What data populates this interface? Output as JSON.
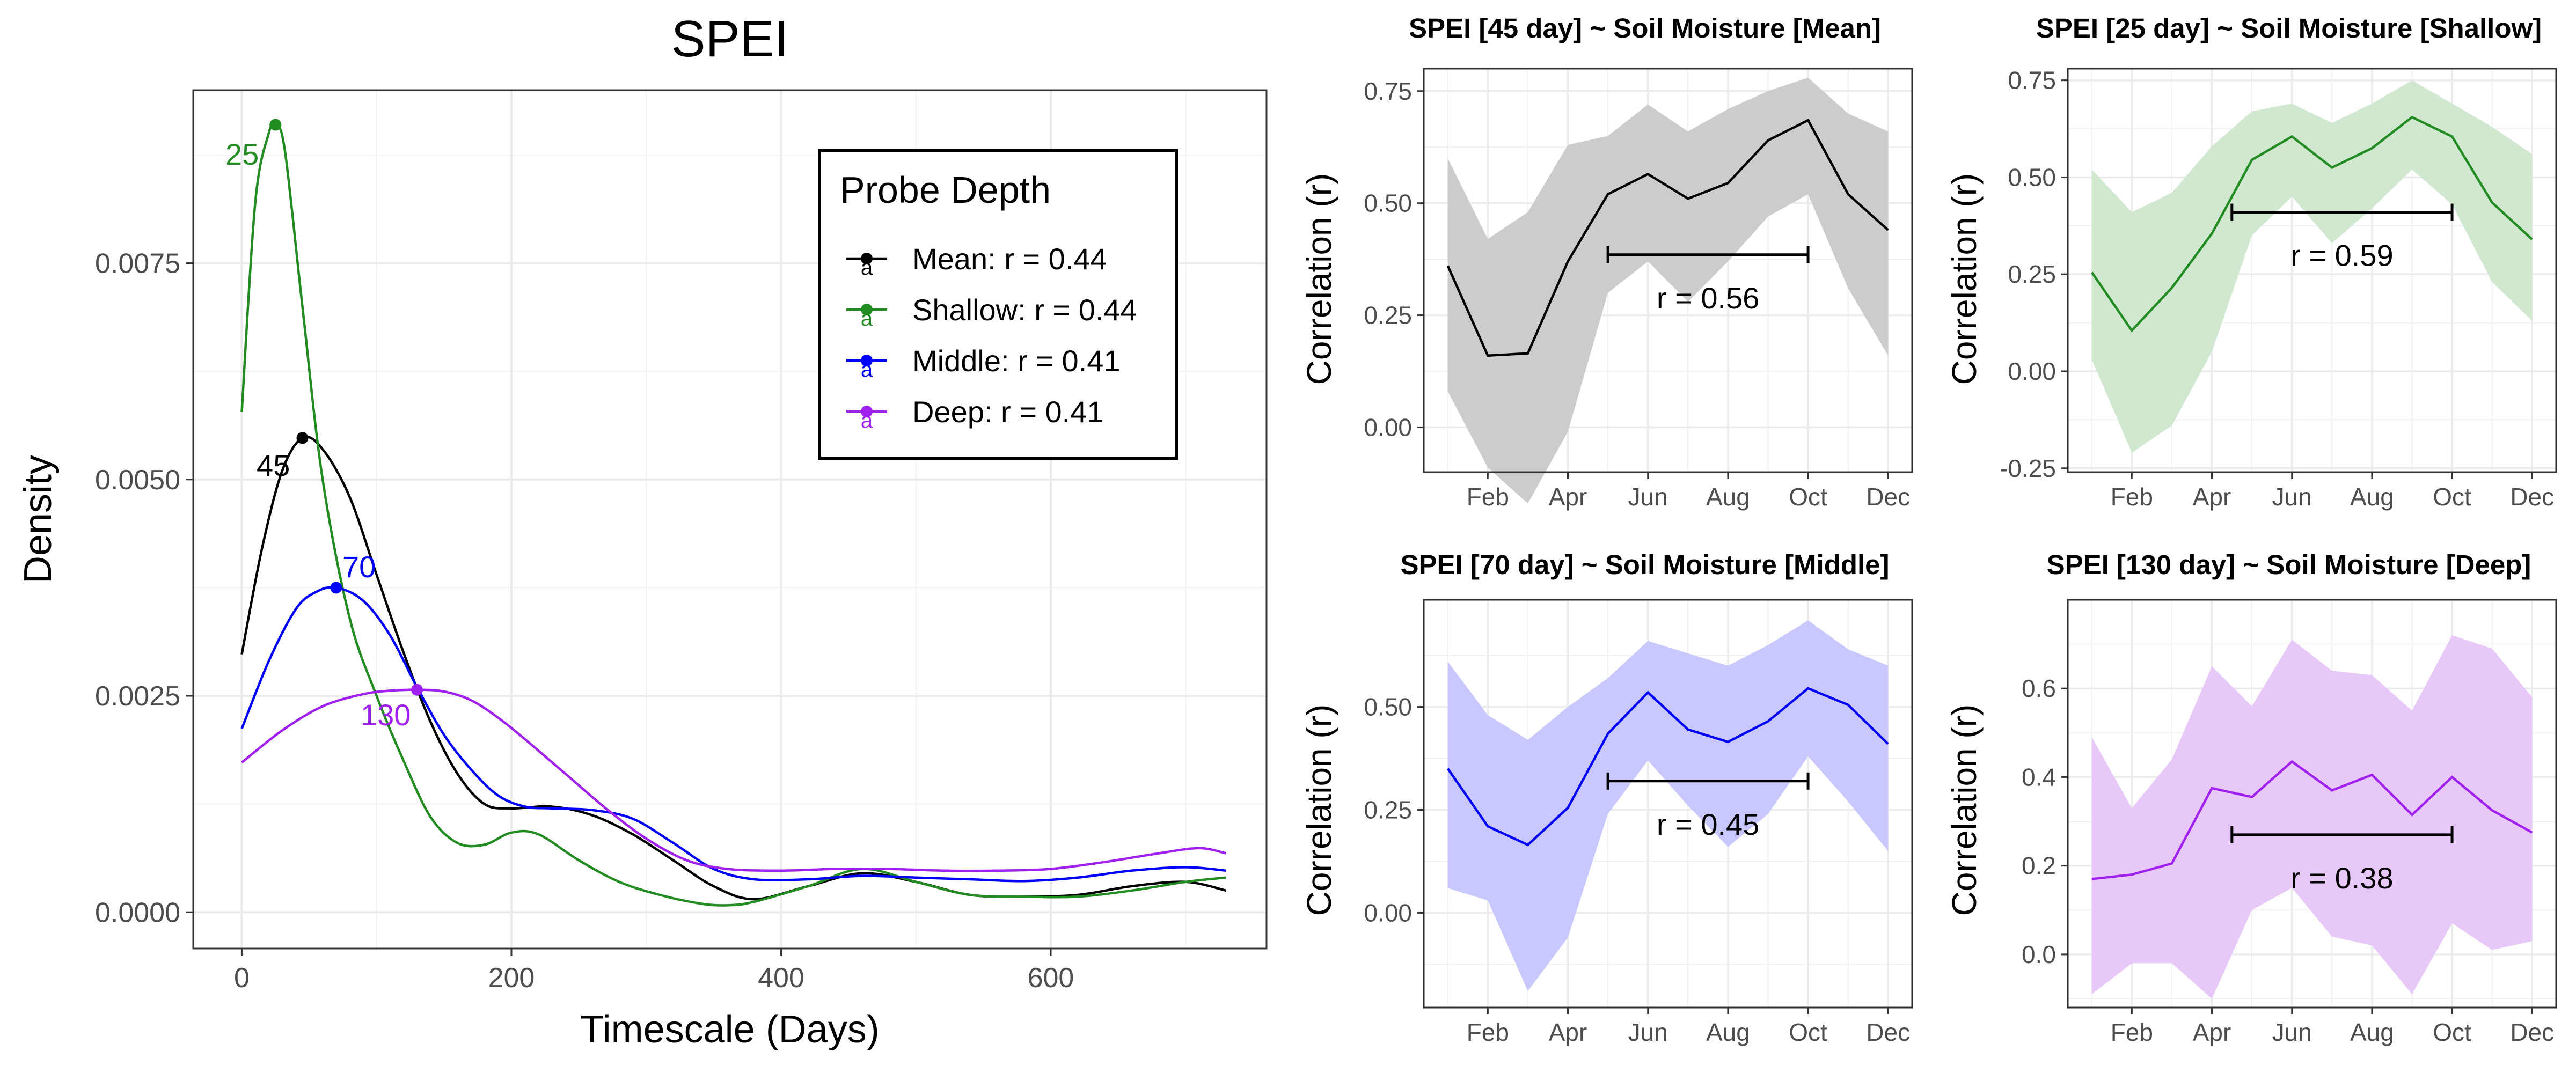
{
  "left_chart": {
    "title": "SPEI",
    "xlabel": "Timescale (Days)",
    "ylabel": "Density",
    "x_ticks": [
      "0",
      "200",
      "400",
      "600"
    ],
    "y_ticks": [
      "0.0000",
      "0.0025",
      "0.0050",
      "0.0075"
    ],
    "legend": {
      "title": "Probe Depth",
      "entries": [
        "Mean: r = 0.44",
        "Shallow: r = 0.44",
        "Middle: r = 0.41",
        "Deep: r = 0.41"
      ],
      "glyph": "a"
    },
    "peak_labels": {
      "shallow": "25",
      "mean": "45",
      "middle": "70",
      "deep": "130"
    }
  },
  "panels": [
    {
      "title": "SPEI [45 day] ~ Soil Moisture [Mean]",
      "ylabel": "Correlation (r)",
      "r_text": "r = 0.56",
      "x_ticks": [
        "Feb",
        "Apr",
        "Jun",
        "Aug",
        "Oct",
        "Dec"
      ],
      "y_ticks": [
        "0.00",
        "0.25",
        "0.50",
        "0.75"
      ]
    },
    {
      "title": "SPEI [25 day] ~ Soil Moisture [Shallow]",
      "ylabel": "Correlation (r)",
      "r_text": "r = 0.59",
      "x_ticks": [
        "Feb",
        "Apr",
        "Jun",
        "Aug",
        "Oct",
        "Dec"
      ],
      "y_ticks": [
        "-0.25",
        "0.00",
        "0.25",
        "0.50",
        "0.75"
      ]
    },
    {
      "title": "SPEI [70 day] ~ Soil Moisture [Middle]",
      "ylabel": "Correlation (r)",
      "r_text": "r = 0.45",
      "x_ticks": [
        "Feb",
        "Apr",
        "Jun",
        "Aug",
        "Oct",
        "Dec"
      ],
      "y_ticks": [
        "0.00",
        "0.25",
        "0.50"
      ]
    },
    {
      "title": "SPEI [130 day] ~ Soil Moisture [Deep]",
      "ylabel": "Correlation (r)",
      "r_text": "r = 0.38",
      "x_ticks": [
        "Feb",
        "Apr",
        "Jun",
        "Aug",
        "Oct",
        "Dec"
      ],
      "y_ticks": [
        "0.0",
        "0.2",
        "0.4",
        "0.6"
      ]
    }
  ],
  "chart_data": [
    {
      "type": "line",
      "title": "SPEI",
      "xlabel": "Timescale (Days)",
      "ylabel": "Density",
      "xlim": [
        -36,
        760
      ],
      "ylim": [
        -0.00042,
        0.0095
      ],
      "x_ticks": [
        0,
        200,
        400,
        600
      ],
      "y_ticks": [
        0,
        0.0025,
        0.005,
        0.0075
      ],
      "grid": true,
      "legend_position": "top-right",
      "legend_title": "Probe Depth",
      "series": [
        {
          "name": "Mean: r = 0.44",
          "color": "#000000",
          "x": [
            0,
            15,
            30,
            45,
            60,
            80,
            100,
            120,
            140,
            160,
            180,
            200,
            230,
            260,
            290,
            320,
            350,
            380,
            420,
            460,
            500,
            540,
            580,
            620,
            660,
            700,
            730
          ],
          "y": [
            0.00298,
            0.0042,
            0.0051,
            0.00548,
            0.00535,
            0.0048,
            0.0039,
            0.003,
            0.0022,
            0.0016,
            0.00125,
            0.0012,
            0.00122,
            0.00112,
            0.0009,
            0.0006,
            0.0003,
            0.00015,
            0.0003,
            0.00045,
            0.00035,
            0.0002,
            0.00018,
            0.0002,
            0.0003,
            0.00035,
            0.00025
          ],
          "peak": {
            "x": 45,
            "y": 0.00548
          }
        },
        {
          "name": "Shallow: r = 0.44",
          "color": "#228b22",
          "x": [
            0,
            10,
            20,
            25,
            32,
            45,
            60,
            80,
            100,
            120,
            140,
            160,
            180,
            200,
            220,
            250,
            280,
            310,
            340,
            360,
            380,
            420,
            460,
            500,
            540,
            580,
            620,
            660,
            700,
            730
          ],
          "y": [
            0.00578,
            0.0082,
            0.009,
            0.0091,
            0.0088,
            0.007,
            0.005,
            0.0034,
            0.0025,
            0.00175,
            0.0011,
            0.0008,
            0.00078,
            0.00092,
            0.0009,
            0.0006,
            0.00035,
            0.0002,
            0.0001,
            8e-05,
            0.00012,
            0.0003,
            0.0005,
            0.00035,
            0.0002,
            0.00018,
            0.00018,
            0.00025,
            0.00035,
            0.0004
          ],
          "peak": {
            "x": 25,
            "y": 0.0091
          }
        },
        {
          "name": "Middle: r = 0.41",
          "color": "#0000ff",
          "x": [
            0,
            20,
            40,
            55,
            70,
            90,
            110,
            130,
            150,
            170,
            190,
            210,
            230,
            260,
            290,
            320,
            350,
            380,
            420,
            460,
            500,
            540,
            580,
            620,
            660,
            700,
            730
          ],
          "y": [
            0.00212,
            0.0029,
            0.0035,
            0.0037,
            0.00375,
            0.0036,
            0.0032,
            0.0026,
            0.00205,
            0.00165,
            0.00135,
            0.00122,
            0.0012,
            0.00118,
            0.00108,
            0.0008,
            0.0005,
            0.00038,
            0.00038,
            0.00042,
            0.0004,
            0.00038,
            0.00036,
            0.0004,
            0.00048,
            0.00052,
            0.00048
          ],
          "peak": {
            "x": 70,
            "y": 0.00375
          }
        },
        {
          "name": "Deep: r = 0.41",
          "color": "#a020f0",
          "x": [
            0,
            30,
            60,
            90,
            110,
            130,
            150,
            170,
            190,
            210,
            240,
            270,
            300,
            330,
            360,
            400,
            440,
            480,
            520,
            560,
            600,
            640,
            680,
            710,
            730
          ],
          "y": [
            0.00173,
            0.0021,
            0.00238,
            0.00252,
            0.00256,
            0.00257,
            0.00255,
            0.00245,
            0.00225,
            0.002,
            0.0016,
            0.0012,
            0.00085,
            0.0006,
            0.0005,
            0.00048,
            0.0005,
            0.0005,
            0.00048,
            0.00048,
            0.0005,
            0.00058,
            0.00068,
            0.00074,
            0.00068
          ],
          "peak": {
            "x": 130,
            "y": 0.00257
          }
        }
      ]
    },
    {
      "type": "area",
      "title": "SPEI [45 day] ~ Soil Moisture [Mean]",
      "ylabel": "Correlation (r)",
      "xlim": [
        0.4,
        12.6
      ],
      "ylim": [
        -0.1,
        0.8
      ],
      "x": [
        1,
        2,
        3,
        4,
        5,
        6,
        7,
        8,
        9,
        10,
        11,
        12
      ],
      "series": [
        {
          "values": [
            0.36,
            0.16,
            0.165,
            0.37,
            0.52,
            0.565,
            0.51,
            0.545,
            0.64,
            0.685,
            0.52,
            0.44
          ],
          "lower": [
            0.08,
            -0.09,
            -0.17,
            -0.01,
            0.3,
            0.37,
            0.28,
            0.37,
            0.47,
            0.52,
            0.31,
            0.16
          ],
          "upper": [
            0.6,
            0.42,
            0.48,
            0.63,
            0.65,
            0.72,
            0.66,
            0.71,
            0.75,
            0.78,
            0.7,
            0.66
          ],
          "color": "#000000",
          "fill": "#cccccc"
        }
      ],
      "summary_bar": {
        "from": 5,
        "to": 10,
        "y": 0.385
      }
    },
    {
      "type": "area",
      "title": "SPEI [25 day] ~ Soil Moisture [Shallow]",
      "ylabel": "Correlation (r)",
      "xlim": [
        0.4,
        12.6
      ],
      "ylim": [
        -0.26,
        0.78
      ],
      "x": [
        1,
        2,
        3,
        4,
        5,
        6,
        7,
        8,
        9,
        10,
        11,
        12
      ],
      "series": [
        {
          "values": [
            0.255,
            0.105,
            0.215,
            0.355,
            0.545,
            0.605,
            0.525,
            0.575,
            0.655,
            0.605,
            0.435,
            0.34
          ],
          "lower": [
            0.03,
            -0.21,
            -0.14,
            0.05,
            0.35,
            0.45,
            0.33,
            0.42,
            0.52,
            0.43,
            0.23,
            0.13
          ],
          "upper": [
            0.52,
            0.41,
            0.46,
            0.58,
            0.67,
            0.69,
            0.64,
            0.69,
            0.75,
            0.69,
            0.63,
            0.56
          ],
          "color": "#228b22",
          "fill": "#d0e7d0"
        }
      ],
      "summary_bar": {
        "from": 4.5,
        "to": 10,
        "y": 0.41
      }
    },
    {
      "type": "area",
      "title": "SPEI [70 day] ~ Soil Moisture [Middle]",
      "ylabel": "Correlation (r)",
      "xlim": [
        0.4,
        12.6
      ],
      "ylim": [
        -0.23,
        0.76
      ],
      "x": [
        1,
        2,
        3,
        4,
        5,
        6,
        7,
        8,
        9,
        10,
        11,
        12
      ],
      "series": [
        {
          "values": [
            0.35,
            0.21,
            0.165,
            0.255,
            0.435,
            0.535,
            0.445,
            0.415,
            0.465,
            0.545,
            0.505,
            0.41
          ],
          "lower": [
            0.06,
            0.03,
            -0.19,
            -0.06,
            0.24,
            0.37,
            0.26,
            0.16,
            0.24,
            0.38,
            0.27,
            0.15
          ],
          "upper": [
            0.61,
            0.48,
            0.42,
            0.5,
            0.57,
            0.66,
            0.63,
            0.6,
            0.65,
            0.71,
            0.64,
            0.6
          ],
          "color": "#0000ff",
          "fill": "#c8c8ff"
        }
      ],
      "summary_bar": {
        "from": 5,
        "to": 10,
        "y": 0.32
      }
    },
    {
      "type": "area",
      "title": "SPEI [130 day] ~ Soil Moisture [Deep]",
      "ylabel": "Correlation (r)",
      "xlim": [
        0.4,
        12.6
      ],
      "ylim": [
        -0.12,
        0.8
      ],
      "x": [
        1,
        2,
        3,
        4,
        5,
        6,
        7,
        8,
        9,
        10,
        11,
        12
      ],
      "series": [
        {
          "values": [
            0.17,
            0.18,
            0.205,
            0.375,
            0.355,
            0.435,
            0.37,
            0.405,
            0.315,
            0.4,
            0.325,
            0.275
          ],
          "lower": [
            -0.09,
            -0.02,
            -0.02,
            -0.1,
            0.1,
            0.15,
            0.04,
            0.02,
            -0.09,
            0.07,
            0.01,
            0.03
          ],
          "upper": [
            0.49,
            0.33,
            0.44,
            0.65,
            0.56,
            0.71,
            0.64,
            0.63,
            0.55,
            0.72,
            0.69,
            0.58
          ],
          "color": "#a020f0",
          "fill": "#e8c8f8"
        }
      ],
      "summary_bar": {
        "from": 4.5,
        "to": 10,
        "y": 0.27
      }
    }
  ]
}
